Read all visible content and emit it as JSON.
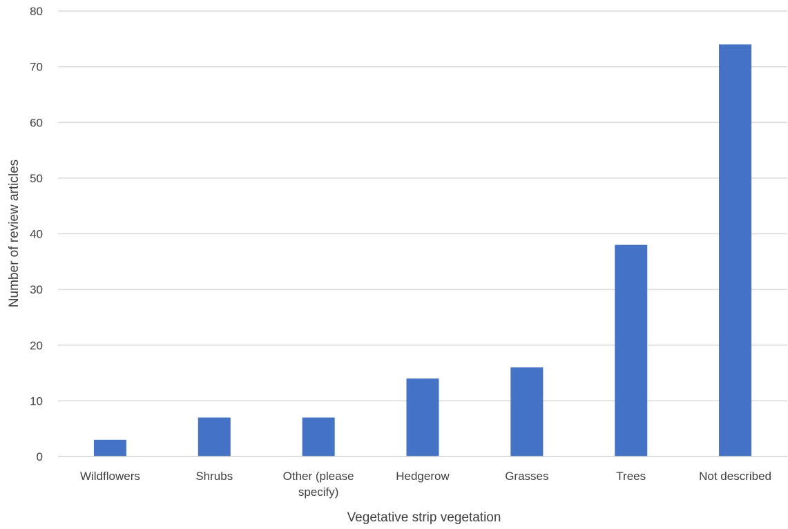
{
  "chart_data": {
    "type": "bar",
    "title": "",
    "xlabel": "Vegetative strip vegetation",
    "ylabel": "Number  of review articles",
    "categories": [
      [
        "Wildflowers"
      ],
      [
        "Shrubs"
      ],
      [
        "Other (please",
        "specify)"
      ],
      [
        "Hedgerow"
      ],
      [
        "Grasses"
      ],
      [
        "Trees"
      ],
      [
        "Not described"
      ]
    ],
    "values": [
      3,
      7,
      7,
      14,
      16,
      38,
      74
    ],
    "ylim": [
      0,
      80
    ],
    "yticks": [
      0,
      10,
      20,
      30,
      40,
      50,
      60,
      70,
      80
    ],
    "grid": true,
    "legend": "none",
    "bar_color": "#4472c4",
    "grid_color": "#d9d9d9"
  }
}
